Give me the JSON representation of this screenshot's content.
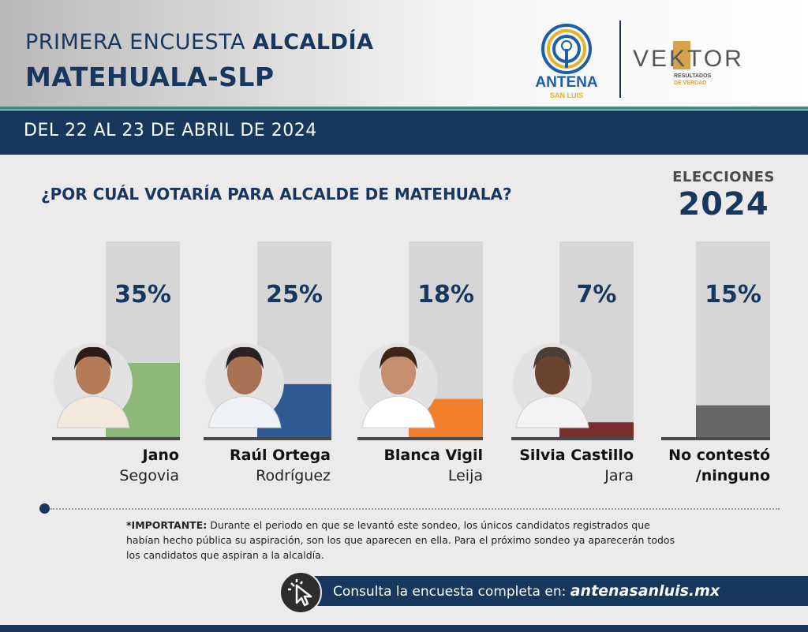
{
  "header": {
    "title_line1_a": "PRIMERA ENCUESTA ",
    "title_line1_b": "ALCALDÍA",
    "title_line2": "MATEHUALA-SLP",
    "logo_antena_name": "ANTENA",
    "logo_antena_sub": "SAN LUIS",
    "logo_vektor_name": "VEKTOR",
    "logo_vektor_tagline1": "RESULTADOS",
    "logo_vektor_tagline2": "DE VERDAD"
  },
  "date_bar": "DEL 22 AL 23 DE ABRIL DE 2024",
  "question": "¿POR CUÁL VOTARÍA PARA ALCALDE DE MATEHUALA?",
  "elections_badge": {
    "label": "ELECCIONES",
    "year": "2024"
  },
  "chart_data": {
    "type": "bar",
    "categories": [
      "Jano Segovia",
      "Raúl Ortega Rodríguez",
      "Blanca Vigil Leija",
      "Silvia Castillo Jara",
      "No contestó /ninguno"
    ],
    "values": [
      35,
      25,
      18,
      7,
      15
    ],
    "value_labels": [
      "35%",
      "25%",
      "18%",
      "7%",
      "15%"
    ],
    "ylim": [
      0,
      100
    ],
    "colors": [
      "#8db878",
      "#2f5a93",
      "#f07f2c",
      "#7a2f2c",
      "#666666"
    ]
  },
  "candidates": [
    {
      "name": "Jano",
      "surname": "Segovia",
      "photo": "candidate-photo"
    },
    {
      "name": "Raúl Ortega",
      "surname": "Rodríguez",
      "photo": "candidate-photo"
    },
    {
      "name": "Blanca Vigil",
      "surname": "Leija",
      "photo": "candidate-photo"
    },
    {
      "name": "Silvia Castillo",
      "surname": "Jara",
      "photo": "candidate-photo"
    },
    {
      "name": "No contestó",
      "surname": "/ninguno",
      "photo": ""
    }
  ],
  "note": {
    "bold": "*IMPORTANTE:",
    "text": " Durante el periodo en que se levantó este sondeo, los únicos candidatos registrados que habían hecho pública su aspiración, son los que aparecen en ella. Para el próximo sondeo ya aparecerán todos los candidatos que aspiran a la alcaldía."
  },
  "footer": {
    "text": "Consulta la encuesta completa en: ",
    "link": "antenasanluis.mx",
    "icon": "click-cursor-icon"
  }
}
